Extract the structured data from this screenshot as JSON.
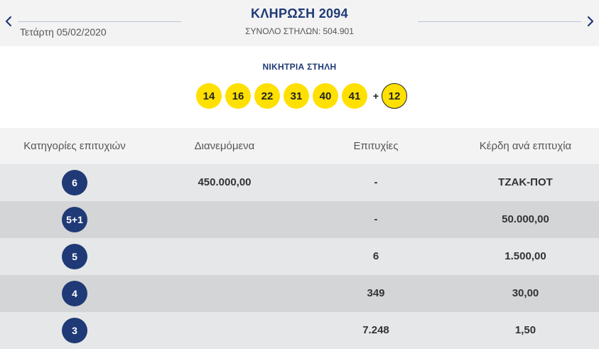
{
  "header": {
    "draw_title": "ΚΛΗΡΩΣΗ 2094",
    "date": "Τετάρτη 05/02/2020",
    "total_columns": "ΣΥΝΟΛΟ ΣΤΗΛΩΝ: 504.901",
    "prev_icon": "chevron-left-icon",
    "next_icon": "chevron-right-icon"
  },
  "winning": {
    "title": "ΝΙΚΗΤΡΙΑ ΣΤΗΛΗ",
    "numbers": [
      "14",
      "16",
      "22",
      "31",
      "40",
      "41"
    ],
    "plus": "+",
    "bonus": "12"
  },
  "table": {
    "headers": [
      "Κατηγορίες επιτυχιών",
      "Διανεμόμενα",
      "Επιτυχίες",
      "Κέρδη ανά επιτυχία"
    ],
    "rows": [
      {
        "category": "6",
        "distributed": "450.000,00",
        "winners": "-",
        "prize": "ΤΖΑΚ-ΠΟΤ"
      },
      {
        "category": "5+1",
        "distributed": "",
        "winners": "-",
        "prize": "50.000,00"
      },
      {
        "category": "5",
        "distributed": "",
        "winners": "6",
        "prize": "1.500,00"
      },
      {
        "category": "4",
        "distributed": "",
        "winners": "349",
        "prize": "30,00"
      },
      {
        "category": "3",
        "distributed": "",
        "winners": "7.248",
        "prize": "1,50"
      }
    ]
  },
  "colors": {
    "brand_navy": "#1f3a76",
    "ball_yellow": "#ffe000",
    "row_light": "#e6e7e8",
    "row_dark": "#d4d5d7"
  }
}
